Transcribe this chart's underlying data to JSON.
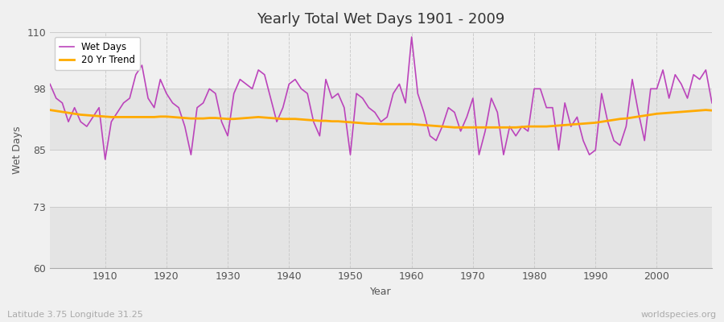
{
  "title": "Yearly Total Wet Days 1901 - 2009",
  "xlabel": "Year",
  "ylabel": "Wet Days",
  "subtitle": "Latitude 3.75 Longitude 31.25",
  "watermark": "worldspecies.org",
  "ylim": [
    60,
    110
  ],
  "yticks": [
    60,
    73,
    85,
    98,
    110
  ],
  "wet_days_color": "#bb44bb",
  "trend_color": "#ffaa00",
  "background_color": "#f0f0f0",
  "plot_bg_color": "#f0f0f0",
  "band_color_light": "#f0f0f0",
  "band_color_dark": "#e4e4e4",
  "years": [
    1901,
    1902,
    1903,
    1904,
    1905,
    1906,
    1907,
    1908,
    1909,
    1910,
    1911,
    1912,
    1913,
    1914,
    1915,
    1916,
    1917,
    1918,
    1919,
    1920,
    1921,
    1922,
    1923,
    1924,
    1925,
    1926,
    1927,
    1928,
    1929,
    1930,
    1931,
    1932,
    1933,
    1934,
    1935,
    1936,
    1937,
    1938,
    1939,
    1940,
    1941,
    1942,
    1943,
    1944,
    1945,
    1946,
    1947,
    1948,
    1949,
    1950,
    1951,
    1952,
    1953,
    1954,
    1955,
    1956,
    1957,
    1958,
    1959,
    1960,
    1961,
    1962,
    1963,
    1964,
    1965,
    1966,
    1967,
    1968,
    1969,
    1970,
    1971,
    1972,
    1973,
    1974,
    1975,
    1976,
    1977,
    1978,
    1979,
    1980,
    1981,
    1982,
    1983,
    1984,
    1985,
    1986,
    1987,
    1988,
    1989,
    1990,
    1991,
    1992,
    1993,
    1994,
    1995,
    1996,
    1997,
    1998,
    1999,
    2000,
    2001,
    2002,
    2003,
    2004,
    2005,
    2006,
    2007,
    2008,
    2009
  ],
  "wet_days": [
    99,
    96,
    95,
    91,
    94,
    91,
    90,
    92,
    94,
    83,
    91,
    93,
    95,
    96,
    101,
    103,
    96,
    94,
    100,
    97,
    95,
    94,
    90,
    84,
    94,
    95,
    98,
    97,
    91,
    88,
    97,
    100,
    99,
    98,
    102,
    101,
    96,
    91,
    94,
    99,
    100,
    98,
    97,
    91,
    88,
    100,
    96,
    97,
    94,
    84,
    97,
    96,
    94,
    93,
    91,
    92,
    97,
    99,
    95,
    109,
    97,
    93,
    88,
    87,
    90,
    94,
    93,
    89,
    92,
    96,
    84,
    89,
    96,
    93,
    84,
    90,
    88,
    90,
    89,
    98,
    98,
    94,
    94,
    85,
    95,
    90,
    92,
    87,
    84,
    85,
    97,
    91,
    87,
    86,
    90,
    100,
    93,
    87,
    98,
    98,
    102,
    96,
    101,
    99,
    96,
    101,
    100,
    102,
    95
  ],
  "trend": [
    93.5,
    93.3,
    93.1,
    92.9,
    92.7,
    92.5,
    92.4,
    92.3,
    92.2,
    92.1,
    92.0,
    92.0,
    92.0,
    92.0,
    92.0,
    92.0,
    92.0,
    92.0,
    92.1,
    92.1,
    92.0,
    91.9,
    91.8,
    91.7,
    91.7,
    91.7,
    91.8,
    91.8,
    91.7,
    91.6,
    91.6,
    91.7,
    91.8,
    91.9,
    92.0,
    91.9,
    91.8,
    91.7,
    91.6,
    91.6,
    91.6,
    91.5,
    91.4,
    91.3,
    91.2,
    91.2,
    91.1,
    91.1,
    91.0,
    90.9,
    90.8,
    90.7,
    90.6,
    90.6,
    90.5,
    90.5,
    90.5,
    90.5,
    90.5,
    90.5,
    90.4,
    90.3,
    90.2,
    90.1,
    90.0,
    89.9,
    89.8,
    89.8,
    89.8,
    89.8,
    89.8,
    89.8,
    89.8,
    89.8,
    89.8,
    89.8,
    89.8,
    89.9,
    90.0,
    90.0,
    90.0,
    90.0,
    90.1,
    90.2,
    90.3,
    90.4,
    90.5,
    90.6,
    90.7,
    90.8,
    91.0,
    91.2,
    91.4,
    91.6,
    91.7,
    91.9,
    92.1,
    92.3,
    92.5,
    92.7,
    92.8,
    92.9,
    93.0,
    93.1,
    93.2,
    93.3,
    93.4,
    93.5,
    93.4
  ]
}
